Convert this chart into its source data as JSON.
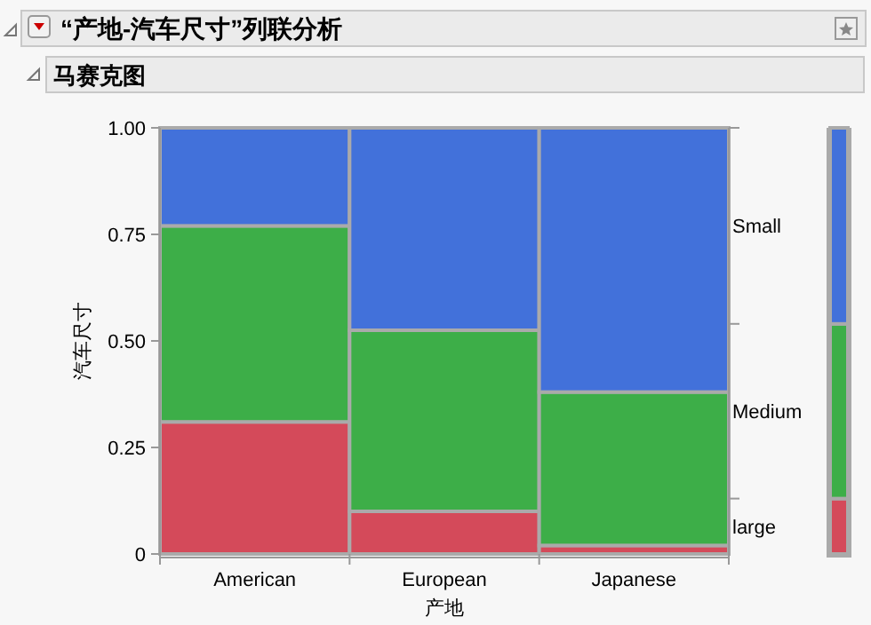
{
  "chart_data": {
    "type": "bar",
    "stacked": true,
    "title": "“产地-汽车尺寸”列联分析",
    "subtitle": "马赛克图",
    "xlabel": "产地",
    "ylabel": "汽车尺寸",
    "categories": [
      "American",
      "European",
      "Japanese",
      null
    ],
    "series": [
      {
        "name": "large",
        "color": "#d44a5a",
        "values": [
          0.31,
          0.1,
          0.02,
          0.13
        ]
      },
      {
        "name": "Medium",
        "color": "#3dae48",
        "values": [
          0.46,
          0.425,
          0.36,
          0.41
        ]
      },
      {
        "name": "Small",
        "color": "#4271da",
        "values": [
          0.23,
          0.475,
          0.62,
          0.46
        ]
      }
    ],
    "ylim": [
      0,
      1
    ],
    "yticks": [
      {
        "value": 0,
        "label": "0"
      },
      0.25,
      {
        "value": 0.5,
        "label": "0.50"
      },
      0.75,
      {
        "value": 1,
        "label": "1.00"
      }
    ],
    "legend": "right"
  }
}
